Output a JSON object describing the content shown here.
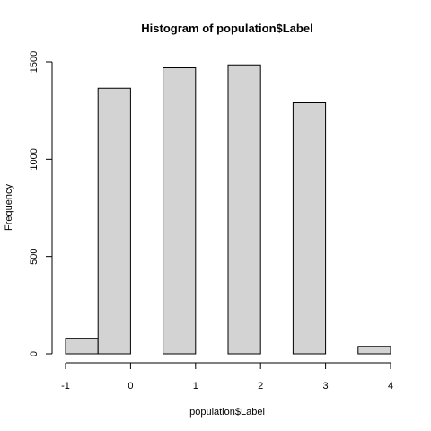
{
  "chart_data": {
    "type": "bar",
    "title": "Histogram of population$Label",
    "xlabel": "population$Label",
    "ylabel": "Frequency",
    "bins": [
      {
        "from": -1.0,
        "to": -0.5,
        "count": 80
      },
      {
        "from": -0.5,
        "to": 0.0,
        "count": 1365
      },
      {
        "from": 0.0,
        "to": 0.5,
        "count": 0
      },
      {
        "from": 0.5,
        "to": 1.0,
        "count": 1470
      },
      {
        "from": 1.0,
        "to": 1.5,
        "count": 0
      },
      {
        "from": 1.5,
        "to": 2.0,
        "count": 1485
      },
      {
        "from": 2.0,
        "to": 2.5,
        "count": 0
      },
      {
        "from": 2.5,
        "to": 3.0,
        "count": 1290
      },
      {
        "from": 3.0,
        "to": 3.5,
        "count": 0
      },
      {
        "from": 3.5,
        "to": 4.0,
        "count": 38
      }
    ],
    "xlim": [
      -1,
      4
    ],
    "ylim": [
      0,
      1500
    ],
    "x_ticks": [
      "-1",
      "0",
      "1",
      "2",
      "3",
      "4"
    ],
    "y_ticks": [
      "0",
      "500",
      "1000",
      "1500"
    ],
    "bar_fill": "#d3d3d3",
    "grid": false
  }
}
